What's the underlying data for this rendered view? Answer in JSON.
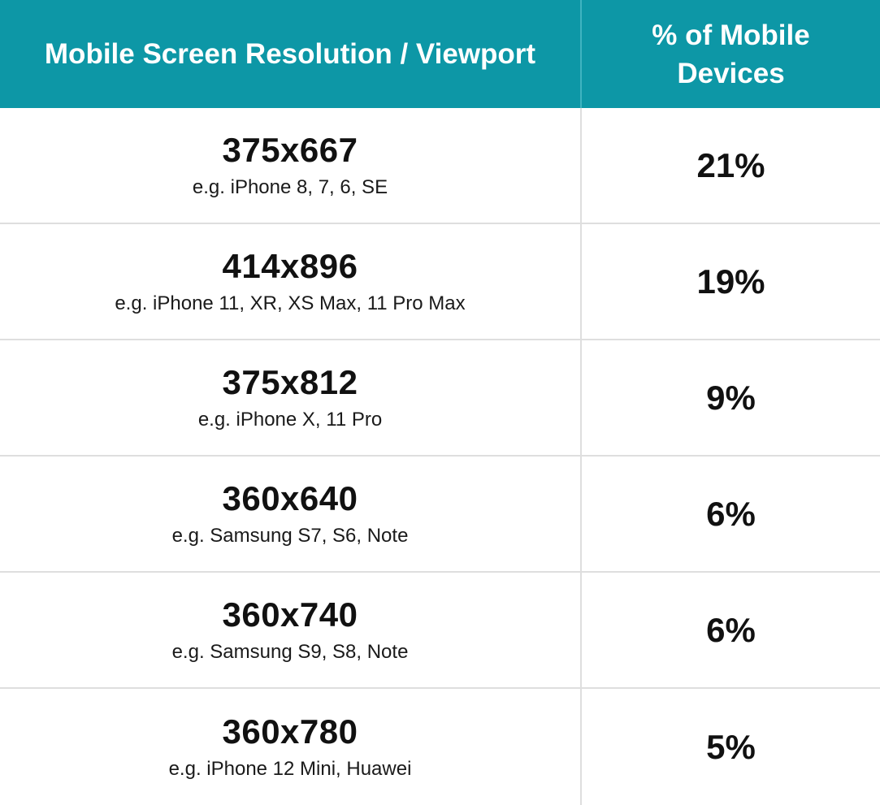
{
  "chart_data": {
    "type": "table",
    "columns": [
      "Mobile Screen Resolution / Viewport",
      "% of Mobile Devices"
    ],
    "rows": [
      {
        "resolution": "375x667",
        "example": "e.g. iPhone 8, 7, 6, SE",
        "percent": "21%"
      },
      {
        "resolution": "414x896",
        "example": "e.g. iPhone 11, XR, XS Max, 11 Pro Max",
        "percent": "19%"
      },
      {
        "resolution": "375x812",
        "example": "e.g. iPhone X, 11 Pro",
        "percent": "9%"
      },
      {
        "resolution": "360x640",
        "example": "e.g. Samsung S7, S6, Note",
        "percent": "6%"
      },
      {
        "resolution": "360x740",
        "example": "e.g. Samsung S9, S8, Note",
        "percent": "6%"
      },
      {
        "resolution": "360x780",
        "example": "e.g. iPhone 12 Mini, Huawei",
        "percent": "5%"
      }
    ],
    "colors": {
      "header_bg": "#0d97a6",
      "header_text": "#ffffff",
      "grid_line": "#dedede"
    }
  }
}
